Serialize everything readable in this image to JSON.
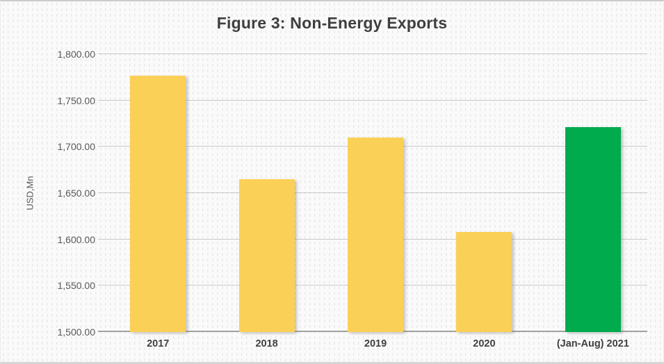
{
  "figure": {
    "title": "Figure 3: Non-Energy Exports"
  },
  "chart_data": {
    "type": "bar",
    "title": "Figure 3: Non-Energy Exports",
    "xlabel": "",
    "ylabel": "USD,Mn",
    "categories": [
      "2017",
      "2018",
      "2019",
      "2020",
      "(Jan-Aug) 2021"
    ],
    "values": [
      1777,
      1665,
      1710,
      1608,
      1721
    ],
    "bar_colors": [
      "#FBD056",
      "#FBD056",
      "#FBD056",
      "#FBD056",
      "#00AB4E"
    ],
    "ylim": [
      1500,
      1800
    ],
    "ytick_step": 50,
    "yticks": [
      {
        "value": 1800,
        "label": "1,800.00"
      },
      {
        "value": 1750,
        "label": "1,750.00"
      },
      {
        "value": 1700,
        "label": "1,700.00"
      },
      {
        "value": 1650,
        "label": "1,650.00"
      },
      {
        "value": 1600,
        "label": "1,600.00"
      },
      {
        "value": 1550,
        "label": "1,550.00"
      },
      {
        "value": 1500,
        "label": "1,500.00"
      }
    ],
    "grid": "horizontal",
    "legend": "none",
    "colors": {
      "bar_default": "#FBD056",
      "bar_highlight": "#00AB4E",
      "gridline": "#C9C9C9",
      "axis_line": "#A0A0A0",
      "title_text": "#3F3F3F",
      "tick_text": "#595959",
      "background": "#FAFAFA"
    }
  }
}
